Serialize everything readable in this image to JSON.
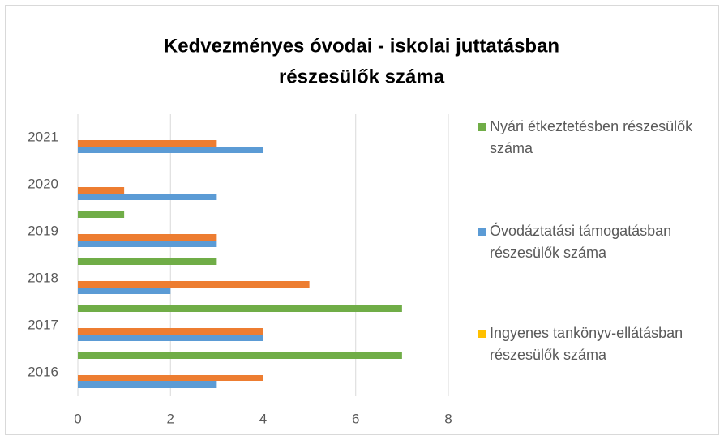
{
  "chart_data": {
    "type": "barh",
    "title": [
      "Kedvezményes óvodai - iskolai juttatásban",
      "részesülők száma"
    ],
    "categories": [
      "2016",
      "2017",
      "2018",
      "2019",
      "2020",
      "2021"
    ],
    "series": [
      {
        "name": "Nyári étkeztetésben részesülők száma",
        "color": "#70ad47",
        "values": [
          7,
          7,
          3,
          1,
          null,
          null
        ]
      },
      {
        "name": "Óvodáztatási támogatásban részesülők száma",
        "color": "#5b9bd5",
        "values": [
          3,
          4,
          2,
          3,
          3,
          4
        ]
      },
      {
        "name": "Ingyenes tankönyv-ellátásban részesülők száma",
        "color": "#ed7d31",
        "legend_color": "#ffc000",
        "values": [
          4,
          4,
          5,
          3,
          1,
          3
        ]
      }
    ],
    "xlim": [
      0,
      8
    ],
    "xticks": [
      0,
      2,
      4,
      6,
      8
    ],
    "grid": true,
    "legend": "right"
  }
}
